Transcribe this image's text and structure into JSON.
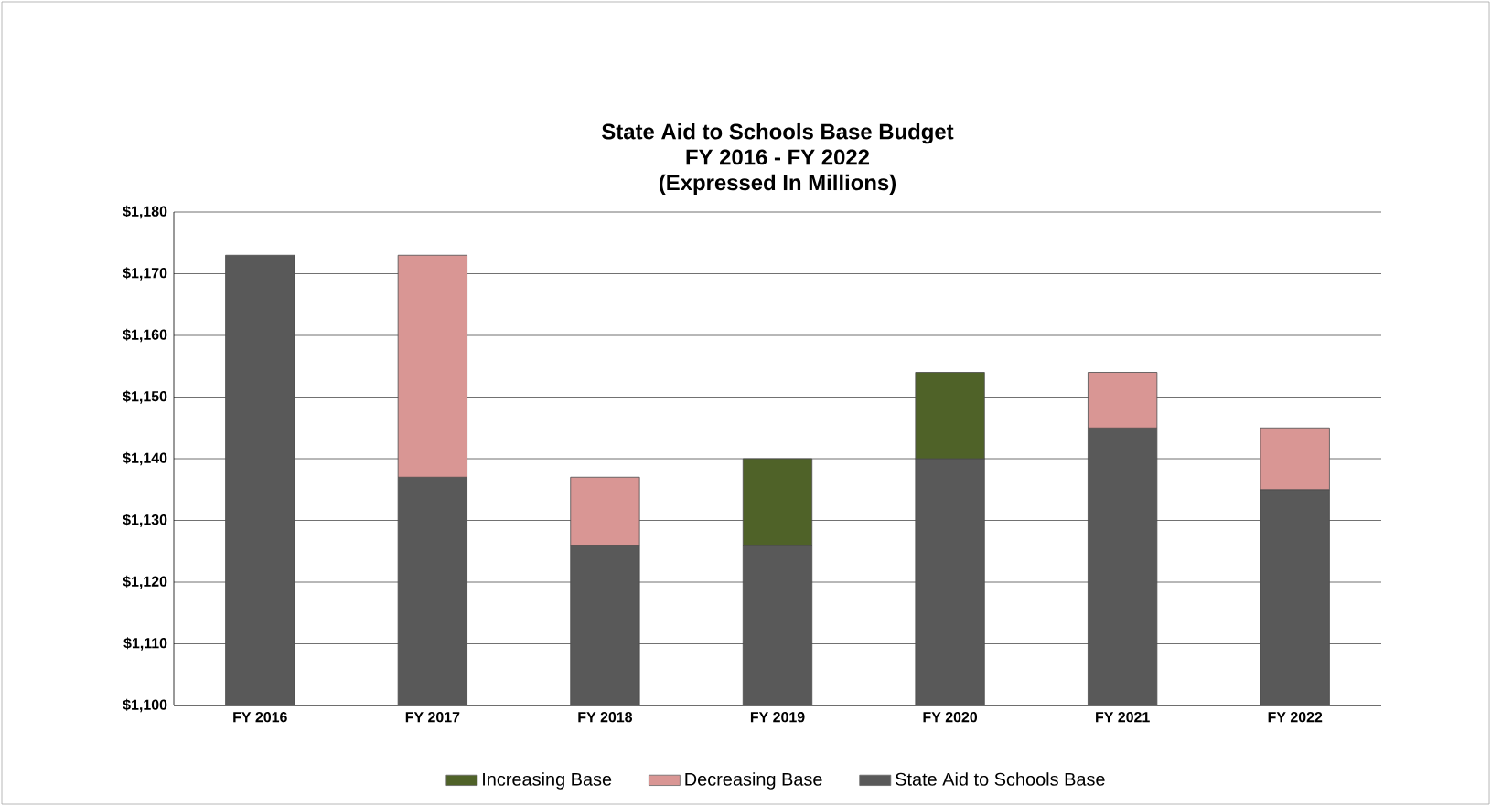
{
  "chart_data": {
    "type": "bar",
    "stacked": true,
    "title": "State Aid to Schools Base Budget\nFY 2016 - FY 2022\n(Expressed In Millions)",
    "categories": [
      "FY 2016",
      "FY 2017",
      "FY 2018",
      "FY 2019",
      "FY 2020",
      "FY 2021",
      "FY 2022"
    ],
    "series": [
      {
        "name": "State Aid to Schools Base",
        "color": "#595959",
        "values": [
          1173,
          1137,
          1126,
          1126,
          1140,
          1145,
          1135
        ]
      },
      {
        "name": "Increasing Base",
        "color": "#4f6228",
        "values": [
          null,
          null,
          null,
          14,
          14,
          null,
          null
        ],
        "base": [
          null,
          null,
          null,
          1126,
          1140,
          null,
          null
        ]
      },
      {
        "name": "Decreasing Base",
        "color": "#d99694",
        "values": [
          null,
          36,
          11,
          null,
          null,
          9,
          10
        ],
        "base": [
          null,
          1137,
          1126,
          null,
          null,
          1145,
          1135
        ]
      }
    ],
    "ylim": [
      1100,
      1180
    ],
    "yticks": [
      {
        "value": 1100,
        "label": "$1,100"
      },
      {
        "value": 1110,
        "label": "$1,110"
      },
      {
        "value": 1120,
        "label": "$1,120"
      },
      {
        "value": 1130,
        "label": "$1,130"
      },
      {
        "value": 1140,
        "label": "$1,140"
      },
      {
        "value": 1150,
        "label": "$1,150"
      },
      {
        "value": 1160,
        "label": "$1,160"
      },
      {
        "value": 1170,
        "label": "$1,170"
      },
      {
        "value": 1180,
        "label": "$1,180"
      }
    ],
    "grid": "y",
    "legend": "bottom"
  }
}
